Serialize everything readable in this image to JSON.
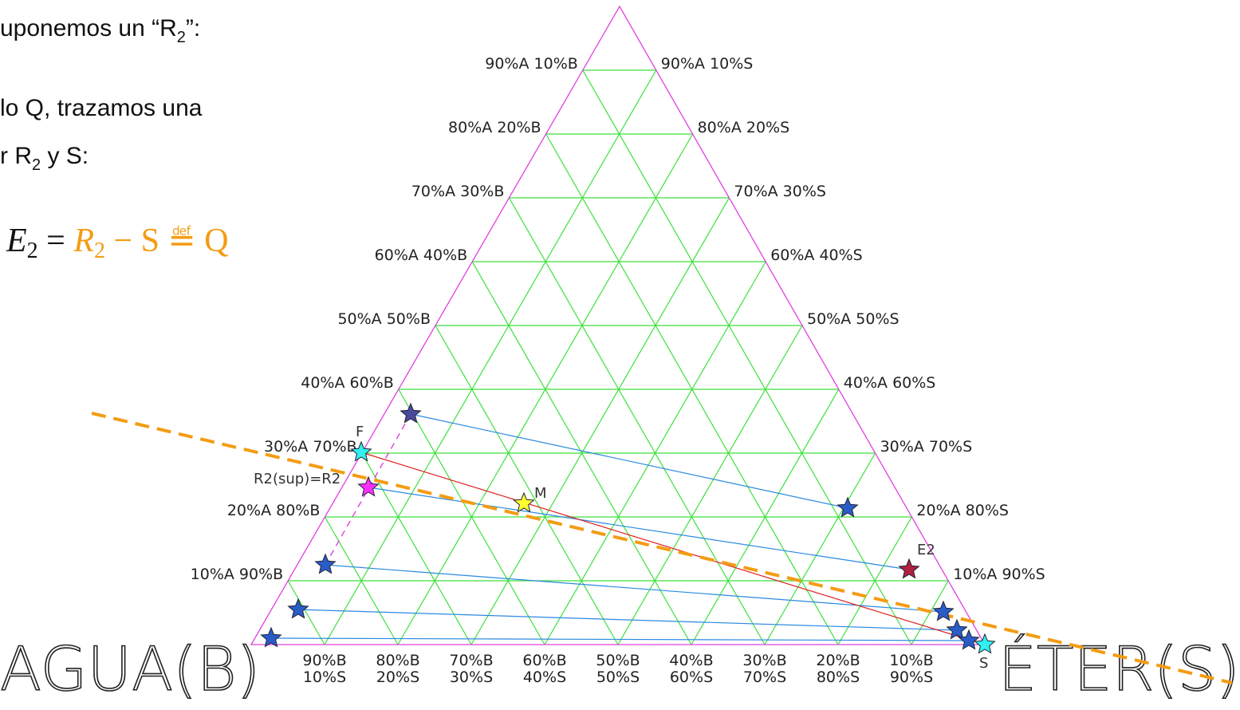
{
  "notes": [
    [
      "uponemos un “R",
      "2",
      "”:"
    ],
    [
      "lo Q, trazamos una"
    ],
    [
      "r R",
      "2",
      " y S:"
    ]
  ],
  "formula": [
    "E",
    "2",
    " = ",
    "R",
    "2",
    " − S ≝ Q"
  ],
  "diagram": {
    "left_labels": [
      "90%A  10%B",
      "80%A  20%B",
      "70%A  30%B",
      "60%A  40%B",
      "50%A  50%B",
      "40%A  60%B",
      "30%A  70%B",
      "20%A  80%B",
      "10%A  90%B"
    ],
    "right_labels": [
      "90%A  10%S",
      "80%A  20%S",
      "70%A  30%S",
      "60%A  40%S",
      "50%A  50%S",
      "40%A  60%S",
      "30%A  70%S",
      "20%A  80%S",
      "10%A  90%S"
    ],
    "bottom_labels": [
      [
        "90%B",
        "10%S"
      ],
      [
        "80%B",
        "20%S"
      ],
      [
        "70%B",
        "30%S"
      ],
      [
        "60%B",
        "40%S"
      ],
      [
        "50%B",
        "50%S"
      ],
      [
        "40%B",
        "60%S"
      ],
      [
        "30%B",
        "70%S"
      ],
      [
        "20%B",
        "80%S"
      ],
      [
        "10%B",
        "90%S"
      ]
    ],
    "vertex_left": "AGUA(B)",
    "vertex_right": "ÉTER(S)",
    "point_labels": {
      "F": "F",
      "R2": "R2(sup)=R2",
      "M": "M",
      "E2": "E2",
      "S": "S"
    }
  }
}
